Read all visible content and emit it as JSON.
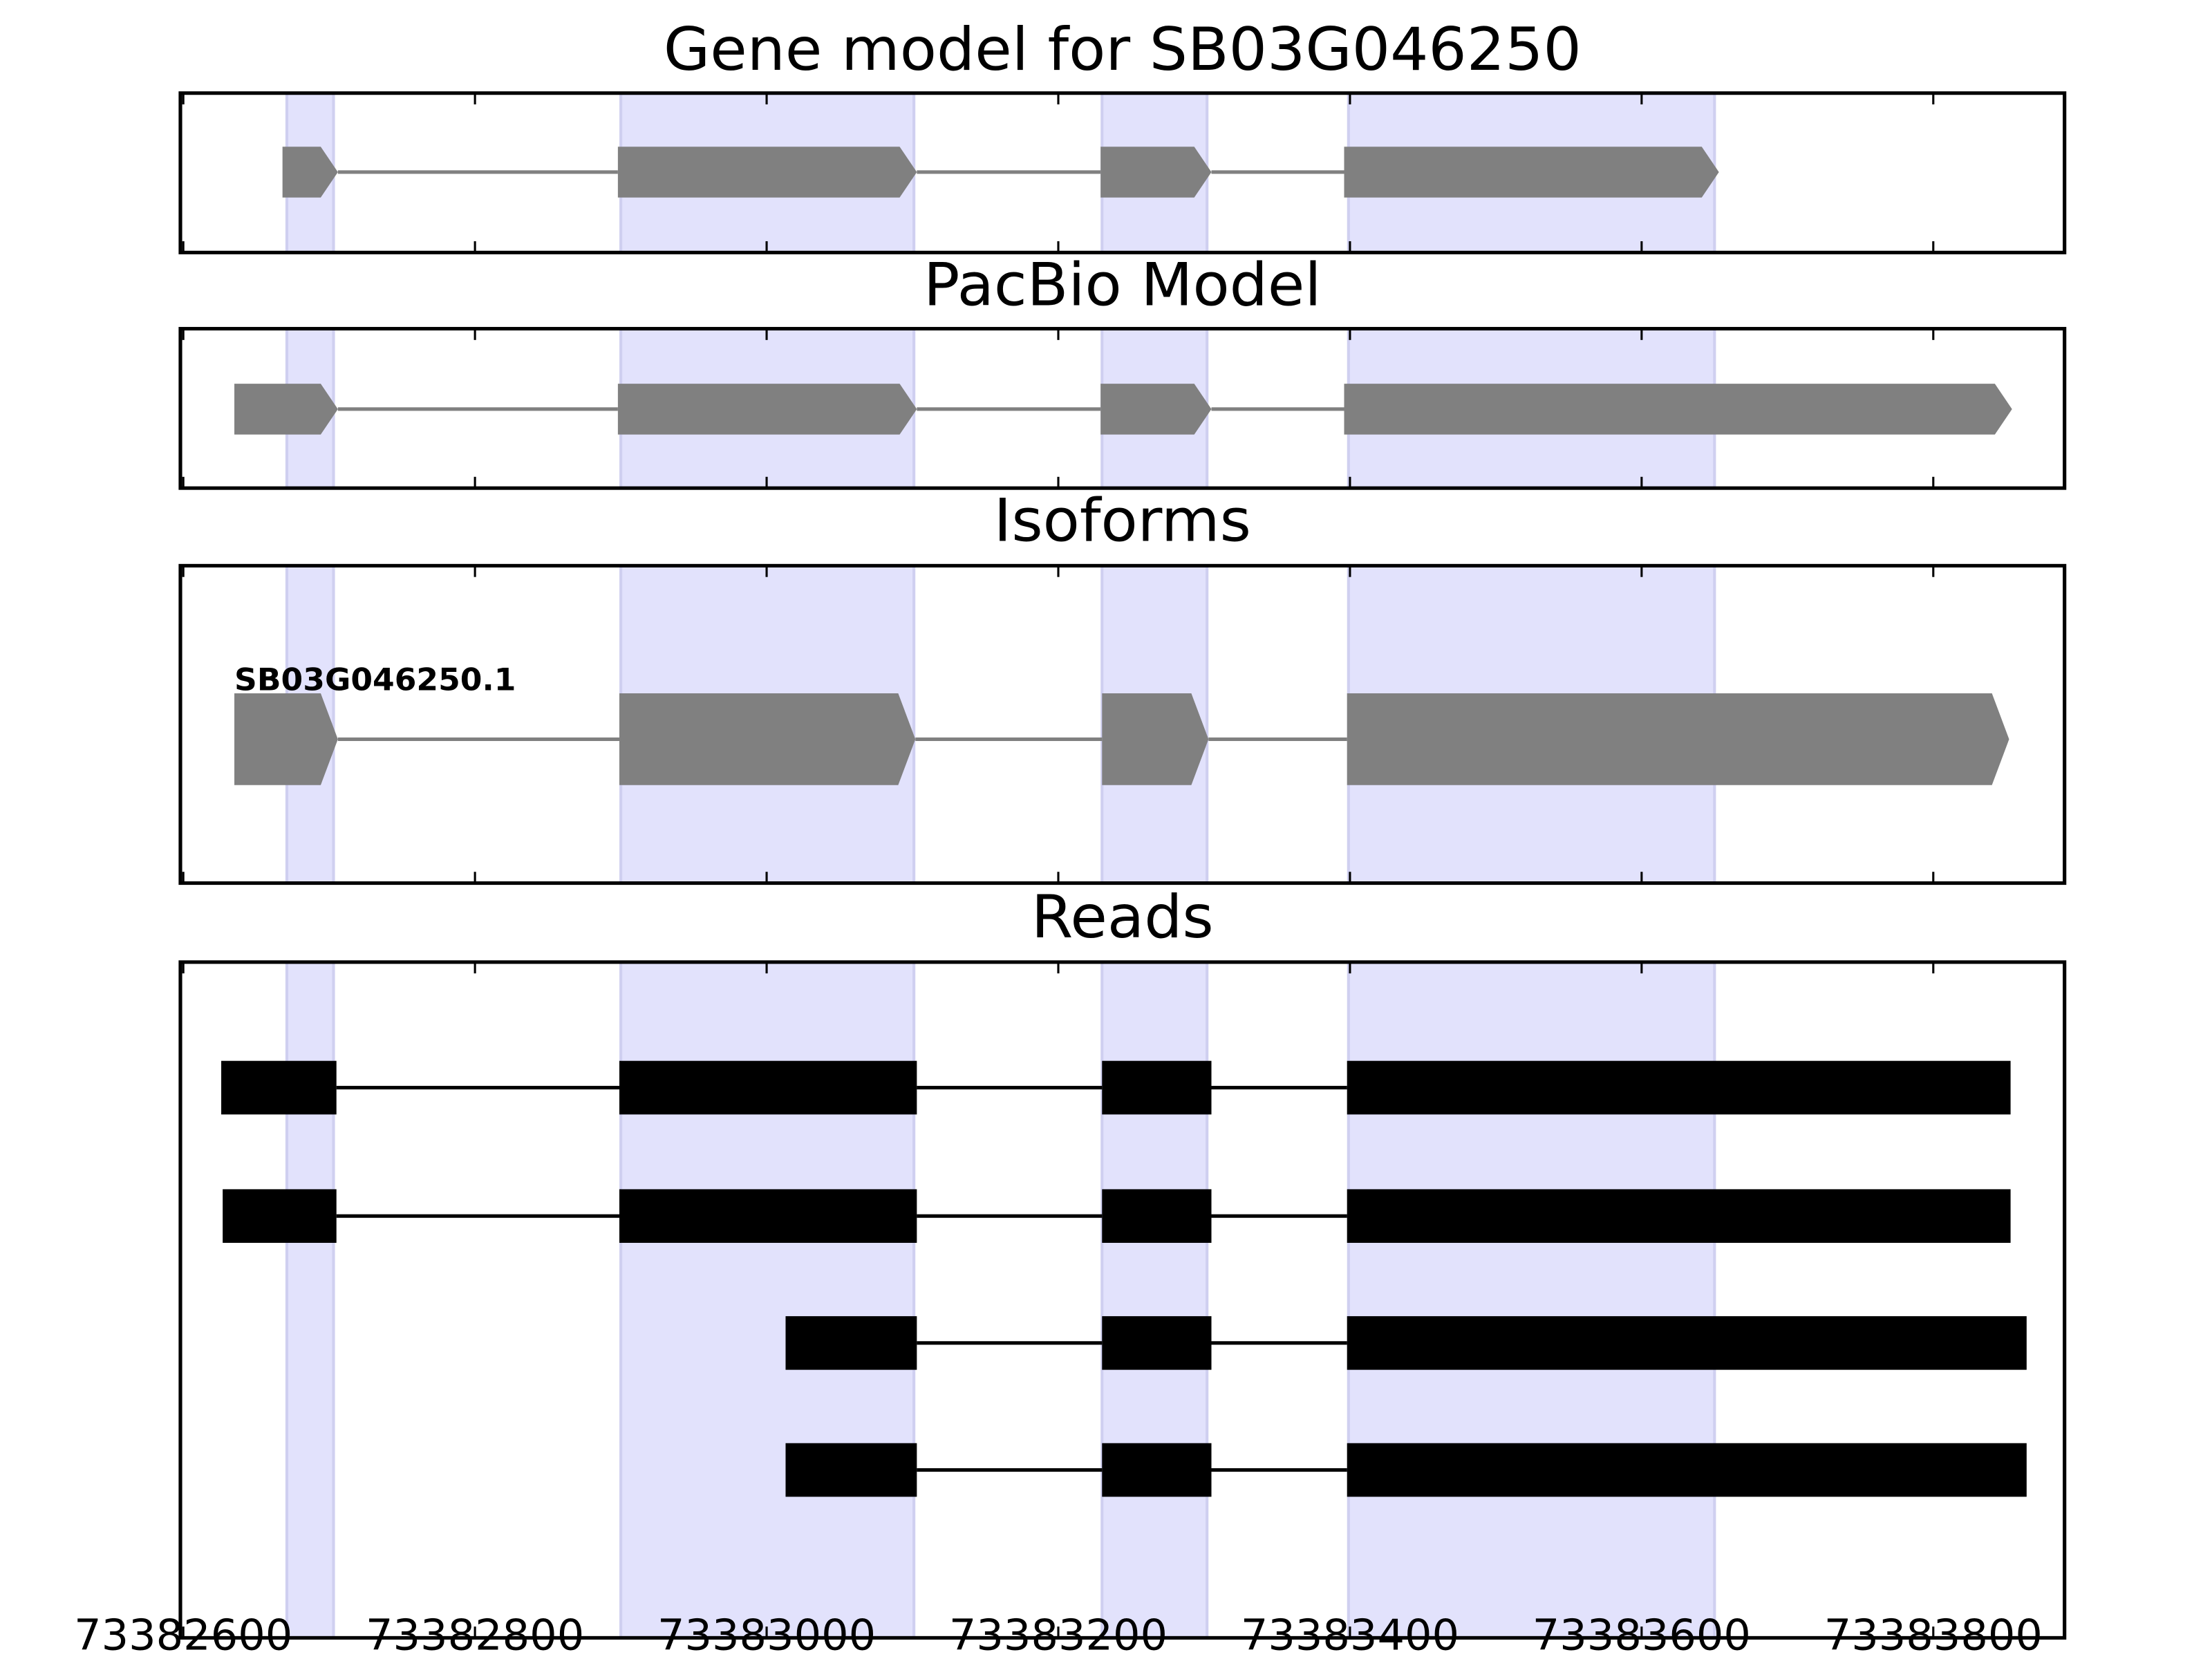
{
  "chart_data": [
    {
      "type": "gene",
      "title": "Gene model for SB03G046250",
      "color": "#808080",
      "xlim": [
        73382598,
        73383890
      ],
      "xticks": [
        73382600,
        73382800,
        73383000,
        73383200,
        73383400,
        73383600,
        73383800
      ],
      "highlights": [
        [
          73382671,
          73382703
        ],
        [
          73382900,
          73383101
        ],
        [
          73383230,
          73383302
        ],
        [
          73383399,
          73383650
        ]
      ],
      "tracks": [
        {
          "exons": [
            [
              73382668,
              73382706
            ],
            [
              73382898,
              73383103
            ],
            [
              73383229,
              73383305
            ],
            [
              73383396,
              73383653
            ]
          ]
        }
      ]
    },
    {
      "type": "gene",
      "title": "PacBio Model",
      "color": "#808080",
      "xlim": [
        73382598,
        73383890
      ],
      "xticks": [
        73382600,
        73382800,
        73383000,
        73383200,
        73383400,
        73383600,
        73383800
      ],
      "highlights": [
        [
          73382671,
          73382703
        ],
        [
          73382900,
          73383101
        ],
        [
          73383230,
          73383302
        ],
        [
          73383399,
          73383650
        ]
      ],
      "tracks": [
        {
          "exons": [
            [
              73382635,
              73382706
            ],
            [
              73382898,
              73383103
            ],
            [
              73383229,
              73383305
            ],
            [
              73383396,
              73383854
            ]
          ]
        }
      ]
    },
    {
      "type": "gene",
      "title": "Isoforms",
      "color": "#808080",
      "xlim": [
        73382598,
        73383890
      ],
      "xticks": [
        73382600,
        73382800,
        73383000,
        73383200,
        73383400,
        73383600,
        73383800
      ],
      "highlights": [
        [
          73382671,
          73382703
        ],
        [
          73382900,
          73383101
        ],
        [
          73383230,
          73383302
        ],
        [
          73383399,
          73383650
        ]
      ],
      "tracks": [
        {
          "label": "SB03G046250.1",
          "exons": [
            [
              73382635,
              73382706
            ],
            [
              73382899,
              73383102
            ],
            [
              73383230,
              73383303
            ],
            [
              73383398,
              73383852
            ]
          ]
        }
      ]
    },
    {
      "type": "reads",
      "title": "Reads",
      "color": "#000000",
      "tick_labels": true,
      "xlim": [
        73382598,
        73383890
      ],
      "xticks": [
        73382600,
        73382800,
        73383000,
        73383200,
        73383400,
        73383600,
        73383800
      ],
      "highlights": [
        [
          73382671,
          73382703
        ],
        [
          73382900,
          73383101
        ],
        [
          73383230,
          73383302
        ],
        [
          73383399,
          73383650
        ]
      ],
      "tracks": [
        {
          "exons": [
            [
              73382626,
              73382705
            ],
            [
              73382899,
              73383103
            ],
            [
              73383230,
              73383305
            ],
            [
              73383398,
              73383853
            ]
          ]
        },
        {
          "exons": [
            [
              73382627,
              73382705
            ],
            [
              73382899,
              73383103
            ],
            [
              73383230,
              73383305
            ],
            [
              73383398,
              73383853
            ]
          ]
        },
        {
          "exons": [
            [
              73383013,
              73383103
            ],
            [
              73383230,
              73383305
            ],
            [
              73383398,
              73383864
            ]
          ]
        },
        {
          "exons": [
            [
              73383013,
              73383103
            ],
            [
              73383230,
              73383305
            ],
            [
              73383398,
              73383864
            ]
          ]
        }
      ]
    }
  ]
}
